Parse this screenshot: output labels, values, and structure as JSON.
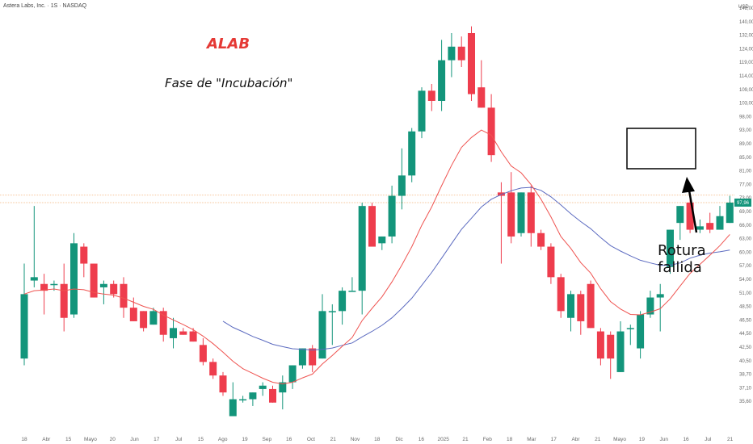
{
  "header": {
    "title": "Astera Labs, Inc. · 1S · NASDAQ",
    "currency": "USD"
  },
  "annotations": {
    "ticker": "ALAB",
    "phase": "Fase de \"Incubación\"",
    "failed_break": "Rotura fallida"
  },
  "colors": {
    "up": "#13957b",
    "down": "#ee3d4d",
    "ma_fast": "#ef5350",
    "ma_slow": "#5c6bc0",
    "box": "#000000",
    "price_tag": "#13957b"
  },
  "chart_data": {
    "type": "candlestick",
    "title": "",
    "ylim": [
      35.6,
      153
    ],
    "y_ticks": [
      "148,00",
      "140,00",
      "132,00",
      "124,00",
      "119,00",
      "114,00",
      "109,00",
      "103,00",
      "98,00",
      "93,00",
      "89,00",
      "85,00",
      "81,00",
      "77,00",
      "73,00",
      "69,00",
      "66,00",
      "63,00",
      "60,00",
      "57,00",
      "54,00",
      "51,00",
      "48,50",
      "46,50",
      "44,50",
      "42,50",
      "40,50",
      "38,70",
      "37,10",
      "35,60"
    ],
    "x_ticks": [
      "18",
      "Abr",
      "15",
      "Mayo",
      "20",
      "Jun",
      "17",
      "Jul",
      "15",
      "Ago",
      "19",
      "Sep",
      "16",
      "Oct",
      "21",
      "Nov",
      "18",
      "Dic",
      "16",
      "2025",
      "21",
      "Feb",
      "18",
      "Mar",
      "17",
      "Abr",
      "21",
      "Mayo",
      "19",
      "Jun",
      "16",
      "Jul",
      "21"
    ],
    "last_price": "97,96",
    "candles": [
      {
        "o": 52,
        "h": 80,
        "l": 50,
        "c": 71
      },
      {
        "o": 75,
        "h": 97,
        "l": 73,
        "c": 76
      },
      {
        "o": 74,
        "h": 77,
        "l": 65,
        "c": 72
      },
      {
        "o": 74,
        "h": 75,
        "l": 72,
        "c": 74
      },
      {
        "o": 74,
        "h": 80,
        "l": 60,
        "c": 64
      },
      {
        "o": 65,
        "h": 89,
        "l": 64,
        "c": 86
      },
      {
        "o": 85,
        "h": 86,
        "l": 76,
        "c": 80
      },
      {
        "o": 80,
        "h": 80,
        "l": 70,
        "c": 70
      },
      {
        "o": 73,
        "h": 75,
        "l": 68,
        "c": 74
      },
      {
        "o": 74,
        "h": 75,
        "l": 70,
        "c": 71
      },
      {
        "o": 74,
        "h": 76,
        "l": 64,
        "c": 67
      },
      {
        "o": 67,
        "h": 70,
        "l": 63,
        "c": 63
      },
      {
        "o": 66,
        "h": 66,
        "l": 60,
        "c": 61
      },
      {
        "o": 62,
        "h": 67,
        "l": 62,
        "c": 66
      },
      {
        "o": 66,
        "h": 67,
        "l": 57,
        "c": 59
      },
      {
        "o": 58,
        "h": 64,
        "l": 55,
        "c": 61
      },
      {
        "o": 60,
        "h": 61,
        "l": 59,
        "c": 59
      },
      {
        "o": 60,
        "h": 61,
        "l": 57,
        "c": 57
      },
      {
        "o": 56,
        "h": 58,
        "l": 50,
        "c": 51
      },
      {
        "o": 51,
        "h": 52,
        "l": 46,
        "c": 47
      },
      {
        "o": 47,
        "h": 48,
        "l": 41,
        "c": 42
      },
      {
        "o": 35,
        "h": 45,
        "l": 35,
        "c": 40
      },
      {
        "o": 40,
        "h": 41,
        "l": 39,
        "c": 40
      },
      {
        "o": 40,
        "h": 42,
        "l": 38,
        "c": 42
      },
      {
        "o": 43,
        "h": 45,
        "l": 41,
        "c": 44
      },
      {
        "o": 43,
        "h": 44,
        "l": 39,
        "c": 39
      },
      {
        "o": 42,
        "h": 47,
        "l": 37,
        "c": 45
      },
      {
        "o": 45,
        "h": 50,
        "l": 43,
        "c": 50
      },
      {
        "o": 50,
        "h": 55,
        "l": 49,
        "c": 55
      },
      {
        "o": 55,
        "h": 56,
        "l": 48,
        "c": 50
      },
      {
        "o": 52,
        "h": 71,
        "l": 52,
        "c": 66
      },
      {
        "o": 66,
        "h": 68,
        "l": 56,
        "c": 66
      },
      {
        "o": 66,
        "h": 73,
        "l": 62,
        "c": 72
      },
      {
        "o": 72,
        "h": 76,
        "l": 72,
        "c": 72
      },
      {
        "o": 72,
        "h": 98,
        "l": 65,
        "c": 97
      },
      {
        "o": 97,
        "h": 98,
        "l": 85,
        "c": 85
      },
      {
        "o": 86,
        "h": 88,
        "l": 84,
        "c": 88
      },
      {
        "o": 88,
        "h": 103,
        "l": 86,
        "c": 100
      },
      {
        "o": 100,
        "h": 114,
        "l": 96,
        "c": 106
      },
      {
        "o": 106,
        "h": 120,
        "l": 104,
        "c": 119
      },
      {
        "o": 119,
        "h": 132,
        "l": 117,
        "c": 131
      },
      {
        "o": 131,
        "h": 133,
        "l": 125,
        "c": 128
      },
      {
        "o": 128,
        "h": 146,
        "l": 125,
        "c": 140
      },
      {
        "o": 140,
        "h": 148,
        "l": 135,
        "c": 144
      },
      {
        "o": 144,
        "h": 147,
        "l": 138,
        "c": 140
      },
      {
        "o": 148,
        "h": 150,
        "l": 128,
        "c": 130
      },
      {
        "o": 132,
        "h": 140,
        "l": 126,
        "c": 126
      },
      {
        "o": 126,
        "h": 130,
        "l": 110,
        "c": 112
      },
      {
        "o": 101,
        "h": 104,
        "l": 80,
        "c": 100
      },
      {
        "o": 101,
        "h": 107,
        "l": 86,
        "c": 88
      },
      {
        "o": 89,
        "h": 101,
        "l": 88,
        "c": 101
      },
      {
        "o": 101,
        "h": 103,
        "l": 85,
        "c": 89
      },
      {
        "o": 89,
        "h": 90,
        "l": 84,
        "c": 85
      },
      {
        "o": 85,
        "h": 86,
        "l": 74,
        "c": 76
      },
      {
        "o": 76,
        "h": 77,
        "l": 64,
        "c": 66
      },
      {
        "o": 64,
        "h": 72,
        "l": 60,
        "c": 71
      },
      {
        "o": 71,
        "h": 72,
        "l": 59,
        "c": 63
      },
      {
        "o": 74,
        "h": 75,
        "l": 61,
        "c": 61
      },
      {
        "o": 60,
        "h": 61,
        "l": 50,
        "c": 52
      },
      {
        "o": 59,
        "h": 60,
        "l": 46,
        "c": 52
      },
      {
        "o": 48,
        "h": 63,
        "l": 48,
        "c": 60
      },
      {
        "o": 61,
        "h": 62,
        "l": 56,
        "c": 61
      },
      {
        "o": 55,
        "h": 66,
        "l": 52,
        "c": 65
      },
      {
        "o": 65,
        "h": 72,
        "l": 64,
        "c": 70
      },
      {
        "o": 70,
        "h": 74,
        "l": 60,
        "c": 71
      },
      {
        "o": 79,
        "h": 90,
        "l": 77,
        "c": 90
      },
      {
        "o": 92,
        "h": 97,
        "l": 87,
        "c": 97
      },
      {
        "o": 98,
        "h": 99,
        "l": 89,
        "c": 90
      },
      {
        "o": 90,
        "h": 93,
        "l": 89,
        "c": 91
      },
      {
        "o": 92,
        "h": 95,
        "l": 89,
        "c": 90
      },
      {
        "o": 90,
        "h": 97,
        "l": 90,
        "c": 94
      },
      {
        "o": 92,
        "h": 100,
        "l": 92,
        "c": 98
      }
    ],
    "ma_fast": [
      71,
      72,
      72.2,
      72.5,
      72,
      72.5,
      72.3,
      71.5,
      71,
      70.7,
      69.8,
      68.6,
      67.4,
      66.5,
      64.8,
      63.4,
      62,
      60.5,
      58.6,
      56.4,
      53.9,
      51.2,
      49,
      47.6,
      46.2,
      45,
      44.5,
      45,
      46.3,
      47.4,
      50.4,
      52.9,
      55.6,
      58.2,
      63.2,
      66.8,
      70.2,
      74.6,
      79.6,
      85,
      91.3,
      96.7,
      103,
      109,
      114.3,
      117.2,
      119.4,
      117.9,
      113,
      108.8,
      106.8,
      103.3,
      99,
      93.8,
      88,
      84.5,
      80.3,
      77.2,
      72.6,
      68.8,
      66.6,
      65,
      64.9,
      65.7,
      66.7,
      69.6,
      73.4,
      77.1,
      79.8,
      82.5,
      85.3,
      88.6
    ],
    "ma_slow": [
      null,
      null,
      null,
      null,
      null,
      null,
      null,
      null,
      null,
      null,
      null,
      null,
      null,
      null,
      null,
      null,
      null,
      null,
      null,
      null,
      63,
      61.2,
      59.9,
      58.5,
      57.4,
      56.2,
      55.5,
      54.9,
      54.7,
      54.5,
      54.7,
      55.1,
      55.9,
      56.6,
      58.4,
      60,
      61.8,
      64,
      66.8,
      69.8,
      73.6,
      77.4,
      81.6,
      85.9,
      90.1,
      93.4,
      96.7,
      99,
      100.4,
      101.5,
      102.3,
      102.5,
      101.6,
      99.7,
      97.3,
      94.7,
      92.4,
      90.3,
      87.7,
      85.3,
      83.7,
      82.3,
      81,
      80.2,
      79.5,
      79.5,
      80.2,
      81.6,
      82.5,
      83.1,
      83.5,
      84
    ]
  }
}
